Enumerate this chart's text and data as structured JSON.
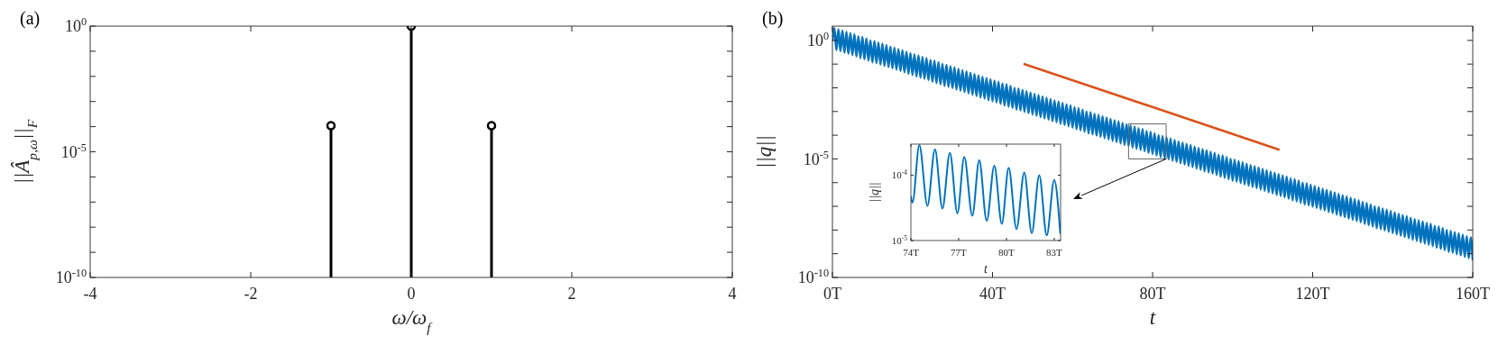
{
  "chart_data": [
    {
      "type": "lollipop",
      "title": "(a)",
      "xlabel": "ω/ω$_{f}$",
      "ylabel": "||Â$_{p,ω}$||$_{F}$",
      "log": "y",
      "marker": "circle",
      "x": [
        -1,
        0,
        1
      ],
      "series": [
        {
          "color": "#000000",
          "values": [
            0.00011,
            1,
            0.00011
          ]
        }
      ],
      "xlim": [
        -4,
        4
      ],
      "xticks": [
        -4,
        -2,
        0,
        2,
        4
      ],
      "ylim": [
        1e-10,
        1
      ],
      "yticks": [
        {
          "value": 1e-10,
          "label": "10$^{-10}$"
        },
        {
          "value": 1e-09,
          "label": null
        },
        {
          "value": 1e-08,
          "label": null
        },
        {
          "value": 1e-07,
          "label": null
        },
        {
          "value": 1e-06,
          "label": null
        },
        {
          "value": 1e-05,
          "label": "10$^{-5}$"
        },
        {
          "value": 0.0001,
          "label": null
        },
        {
          "value": 0.001,
          "label": null
        },
        {
          "value": 0.01,
          "label": null
        },
        {
          "value": 0.1,
          "label": null
        },
        {
          "value": 1,
          "label": "10$^{0}$"
        }
      ]
    },
    {
      "type": "line",
      "title": "(b)",
      "xlabel": "t",
      "ylabel": "||q||",
      "log": "y",
      "series": [
        {
          "color": "#0072bd",
          "x": [
            0,
            0.5,
            1,
            1.5,
            2,
            2.5,
            3,
            3.5,
            4,
            4.5,
            5,
            5.5,
            6,
            6.5,
            7,
            7.5,
            8,
            8.5,
            9,
            9.5,
            10,
            10.5,
            11,
            11.5,
            12,
            12.5,
            13,
            13.5,
            14,
            14.5,
            15,
            15.5,
            16,
            16.5,
            17,
            17.5,
            18,
            18.5,
            19,
            19.5,
            20,
            20.5,
            21,
            21.5,
            22,
            22.5,
            23,
            23.5,
            24,
            24.5,
            25,
            25.5,
            26,
            26.5,
            27,
            27.5,
            28,
            28.5,
            29,
            29.5,
            30,
            30.5,
            31,
            31.5,
            32,
            32.5,
            33,
            33.5,
            34,
            34.5,
            35,
            35.5,
            36,
            36.5,
            37,
            37.5,
            38,
            38.5,
            39,
            39.5,
            40,
            40.5,
            41,
            41.5,
            42,
            42.5,
            43,
            43.5,
            44,
            44.5,
            45,
            45.5,
            46,
            46.5,
            47,
            47.5,
            48,
            48.5,
            49,
            49.5,
            50,
            50.5,
            51,
            51.5,
            52,
            52.5,
            53,
            53.5,
            54,
            54.5,
            55,
            55.5,
            56,
            56.5,
            57,
            57.5,
            58,
            58.5,
            59,
            59.5,
            60,
            60.5,
            61,
            61.5,
            62,
            62.5,
            63,
            63.5,
            64,
            64.5,
            65,
            65.5,
            66,
            66.5,
            67,
            67.5,
            68,
            68.5,
            69,
            69.5,
            70,
            70.5,
            71,
            71.5,
            72,
            72.5,
            73,
            73.5,
            74,
            74.5,
            75,
            75.5,
            76,
            76.5,
            77,
            77.5,
            78,
            78.5,
            79,
            79.5,
            80,
            80.5,
            81,
            81.5,
            82,
            82.5,
            83,
            83.5,
            84,
            84.5,
            85,
            85.5,
            86,
            86.5,
            87,
            87.5,
            88,
            88.5,
            89,
            89.5,
            90,
            90.5,
            91,
            91.5,
            92,
            92.5,
            93,
            93.5,
            94,
            94.5,
            95,
            95.5,
            96,
            96.5,
            97,
            97.5,
            98,
            98.5,
            99,
            99.5,
            100,
            100.5,
            101,
            101.5,
            102,
            102.5,
            103,
            103.5,
            104,
            104.5,
            105,
            105.5,
            106,
            106.5,
            107,
            107.5,
            108,
            108.5,
            109,
            109.5,
            110,
            110.5,
            111,
            111.5,
            112,
            112.5,
            113,
            113.5,
            114,
            114.5,
            115,
            115.5,
            116,
            116.5,
            117,
            117.5,
            118,
            118.5,
            119,
            119.5,
            120,
            120.5,
            121,
            121.5,
            122,
            122.5,
            123,
            123.5,
            124,
            124.5,
            125,
            125.5,
            126,
            126.5,
            127,
            127.5,
            128,
            128.5,
            129,
            129.5,
            130,
            130.5,
            131,
            131.5,
            132,
            132.5,
            133,
            133.5,
            134,
            134.5,
            135,
            135.5,
            136,
            136.5,
            137,
            137.5,
            138,
            138.5,
            139,
            139.5,
            140,
            140.5,
            141,
            141.5,
            142,
            142.5,
            143,
            143.5,
            144,
            144.5,
            145,
            145.5,
            146,
            146.5,
            147,
            147.5,
            148,
            148.5,
            149,
            149.5,
            150,
            150.5,
            151,
            151.5,
            152,
            152.5,
            153,
            153.5,
            154,
            154.5,
            155,
            155.5,
            156,
            156.5,
            157,
            157.5,
            158,
            158.5,
            159,
            159.5,
            160
          ],
          "values": [
            1,
            3.3,
            0.39,
            2.9,
            0.35,
            2.6,
            0.3,
            2.3,
            0.27,
            2.0,
            0.24,
            1.8,
            0.21,
            1.5,
            0.18,
            1.4,
            0.16,
            1.2,
            0.14,
            1.0,
            0.12,
            0.93,
            0.11,
            0.81,
            0.096,
            0.72,
            0.085,
            0.63,
            0.075,
            0.55,
            0.066,
            0.49,
            0.058,
            0.43,
            0.051,
            0.38,
            0.045,
            0.33,
            0.039,
            0.29,
            0.035,
            0.26,
            0.03,
            0.23,
            0.027,
            0.2,
            0.024,
            0.18,
            0.021,
            0.15,
            0.018,
            0.14,
            0.016,
            0.12,
            0.014,
            0.1,
            0.012,
            0.093,
            0.011,
            0.081,
            0.0096,
            0.072,
            0.0085,
            0.063,
            0.0075,
            0.055,
            0.0066,
            0.049,
            0.0058,
            0.043,
            0.0051,
            0.038,
            0.0045,
            0.033,
            0.0039,
            0.029,
            0.0035,
            0.026,
            0.003,
            0.023,
            0.0027,
            0.02,
            0.0024,
            0.018,
            0.0021,
            0.015,
            0.0018,
            0.014,
            0.0016,
            0.012,
            0.0014,
            0.01,
            0.0012,
            0.0093,
            0.0011,
            0.0081,
            0.00096,
            0.0072,
            0.00085,
            0.0063,
            0.00075,
            0.0055,
            0.00066,
            0.0049,
            0.00058,
            0.0043,
            0.00051,
            0.0038,
            0.00045,
            0.0033,
            0.00039,
            0.0029,
            0.00035,
            0.0026,
            0.0003,
            0.0023,
            0.00027,
            0.002,
            0.00024,
            0.0018,
            0.00021,
            0.0015,
            0.00018,
            0.0014,
            0.00016,
            0.0012,
            0.00014,
            0.001,
            0.00012,
            0.00093,
            0.00011,
            0.00081,
            9.6e-05,
            0.00072,
            8.5e-05,
            0.00063,
            7.5e-05,
            0.00055,
            6.6e-05,
            0.00049,
            5.8e-05,
            0.00043,
            5.1e-05,
            0.00038,
            4.5e-05,
            0.00033,
            3.9e-05,
            0.00029,
            3.5e-05,
            0.00026,
            3e-05,
            0.00023,
            2.7e-05,
            0.0002,
            2.4e-05,
            0.00018,
            2.1e-05,
            0.00015,
            1.8e-05,
            0.00014,
            1.6e-05,
            0.00012,
            1.4e-05,
            0.0001,
            1.2e-05,
            9.3e-05,
            1.1e-05,
            8.1e-05,
            9.6e-06,
            7.2e-05,
            8.5e-06,
            6.3e-05,
            7.5e-06,
            5.5e-05,
            6.6e-06,
            4.9e-05,
            5.8e-06,
            4.3e-05,
            5.1e-06,
            3.8e-05,
            4.5e-06,
            3.3e-05,
            3.9e-06,
            2.9e-05,
            3.5e-06,
            2.6e-05,
            3e-06,
            2.3e-05,
            2.7e-06,
            2e-05,
            2.4e-06,
            1.8e-05,
            2.1e-06,
            1.5e-05,
            1.8e-06,
            1.4e-05,
            1.6e-06,
            1.2e-05,
            1.4e-06,
            1e-05,
            1.2e-06,
            9.3e-06,
            1.1e-06,
            8.1e-06,
            9.6e-07,
            7.2e-06,
            8.5e-07,
            6.3e-06,
            7.5e-07,
            5.5e-06,
            6.6e-07,
            4.9e-06,
            5.8e-07,
            4.3e-06,
            5.1e-07,
            3.8e-06,
            4.5e-07,
            3.3e-06,
            3.9e-07,
            2.9e-06,
            3.5e-07,
            2.6e-06,
            3e-07,
            2.3e-06,
            2.7e-07,
            2e-06,
            2.4e-07,
            1.8e-06,
            2.1e-07,
            1.5e-06,
            1.8e-07,
            1.4e-06,
            1.6e-07,
            1.2e-06,
            1.4e-07,
            1e-06,
            1.2e-07,
            9.3e-07,
            1.1e-07,
            8.1e-07,
            9.6e-08,
            7.2e-07,
            8.5e-08,
            6.3e-07,
            7.5e-08,
            5.5e-07,
            6.6e-08,
            4.9e-07,
            5.8e-08,
            4.3e-07,
            5.1e-08,
            3.8e-07,
            4.5e-08,
            3.3e-07,
            3.9e-08,
            2.9e-07,
            3.5e-08,
            2.6e-07,
            3e-08,
            2.3e-07,
            2.7e-08,
            2e-07,
            2.4e-08,
            1.8e-07,
            2.1e-08,
            1.5e-07,
            1.8e-08,
            1.4e-07,
            1.6e-08,
            1.2e-07,
            1.4e-08,
            1e-07,
            1.2e-08,
            9.3e-08,
            1.1e-08,
            8.1e-08,
            9.6e-09,
            7.2e-08,
            8.5e-09,
            6.3e-08,
            7.5e-09,
            5.5e-08,
            6.6e-09,
            4.9e-08,
            5.8e-09,
            4.3e-08,
            5.1e-09,
            3.8e-08,
            4.5e-09,
            3.3e-08,
            3.9e-09,
            2.9e-08,
            3.5e-09,
            2.6e-08,
            3e-09,
            2.3e-08,
            2.7e-09,
            2e-08,
            2.4e-09,
            1.8e-08,
            2.1e-09,
            1.5e-08,
            1.8e-09,
            1.4e-08,
            1.6e-09,
            1.2e-08,
            1.4e-09,
            1e-08,
            1.2e-09,
            9.3e-09,
            1.1e-09,
            8.1e-09,
            9.6e-10,
            7.2e-09,
            8.5e-10,
            6.3e-09,
            7.5e-10,
            5.5e-09,
            6.6e-10,
            4.9e-09,
            5.8e-10
          ]
        },
        {
          "color": "#d95319",
          "x": [
            48,
            111.5
          ],
          "values": [
            0.1,
            2.5e-05
          ]
        }
      ],
      "xlim": [
        0,
        160
      ],
      "xticks": [
        {
          "value": 0,
          "label": "0T"
        },
        {
          "value": 40,
          "label": "40T"
        },
        {
          "value": 80,
          "label": "80T"
        },
        {
          "value": 120,
          "label": "120T"
        },
        {
          "value": 160,
          "label": "160T"
        }
      ],
      "ylim": [
        1e-10,
        4
      ],
      "yticks": [
        {
          "value": 1e-10,
          "label": "10$^{-10}$"
        },
        {
          "value": 1e-09,
          "label": null
        },
        {
          "value": 1e-08,
          "label": null
        },
        {
          "value": 1e-07,
          "label": null
        },
        {
          "value": 1e-06,
          "label": null
        },
        {
          "value": 1e-05,
          "label": "10$^{-5}$"
        },
        {
          "value": 0.0001,
          "label": null
        },
        {
          "value": 0.001,
          "label": null
        },
        {
          "value": 0.01,
          "label": null
        },
        {
          "value": 0.1,
          "label": null
        },
        {
          "value": 1,
          "label": "10$^{0}$"
        }
      ]
    },
    {
      "type": "line",
      "xlabel": "t",
      "ylabel": "||q||",
      "log": "y",
      "series": [
        {
          "color": "#0072bd",
          "x": [
            74,
            74.1,
            74.53,
            75.04,
            75.51,
            75.98,
            76.45,
            76.92,
            77.35,
            77.86,
            78.29,
            78.76,
            79.24,
            79.71,
            80.14,
            80.63,
            81.12,
            81.59,
            82.06,
            82.53,
            83.0,
            83.38
          ],
          "values": [
            4.7e-05,
            3.8e-05,
            0.00029,
            3.4e-05,
            0.00025,
            3.1e-05,
            0.00022,
            2.6e-05,
            0.00019,
            2.4e-05,
            0.00017,
            2e-05,
            0.00014,
            1.8e-05,
            0.00013,
            1.5e-05,
            0.00011,
            1.3e-05,
            0.0001,
            1.2e-05,
            8.5e-05,
            1.3e-05
          ]
        }
      ],
      "xlim": [
        74,
        83.4
      ],
      "xticks": [
        {
          "value": 74,
          "label": "74T"
        },
        {
          "value": 77,
          "label": "77T"
        },
        {
          "value": 80,
          "label": "80T"
        },
        {
          "value": 83,
          "label": "83T"
        }
      ],
      "ylim": [
        1e-05,
        0.0003
      ],
      "yticks": [
        {
          "value": 1e-05,
          "label": "10$^{-5}$"
        },
        {
          "value": 0.0001,
          "label": "10$^{-4}$"
        }
      ]
    }
  ]
}
